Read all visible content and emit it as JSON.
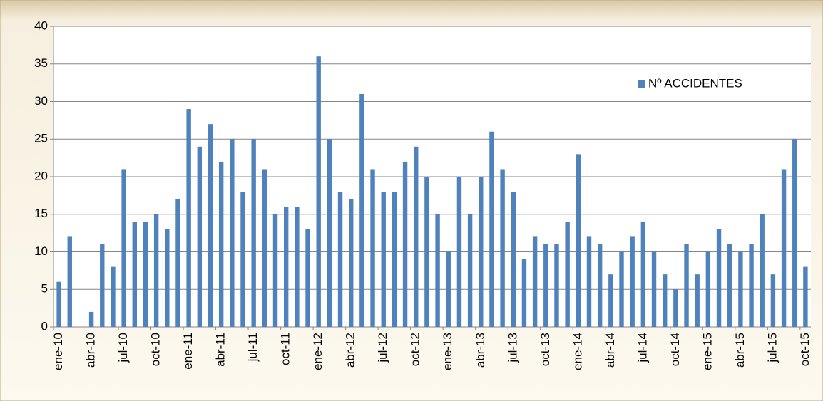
{
  "chart_data": {
    "type": "bar",
    "categories": [
      "ene-10",
      null,
      null,
      "abr-10",
      null,
      null,
      "jul-10",
      null,
      null,
      "oct-10",
      null,
      null,
      "ene-11",
      null,
      null,
      "abr-11",
      null,
      null,
      "jul-11",
      null,
      null,
      "oct-11",
      null,
      null,
      "ene-12",
      null,
      null,
      "abr-12",
      null,
      null,
      "jul-12",
      null,
      null,
      "oct-12",
      null,
      null,
      "ene-13",
      null,
      null,
      "abr-13",
      null,
      null,
      "jul-13",
      null,
      null,
      "oct-13",
      null,
      null,
      "ene-14",
      null,
      null,
      "abr-14",
      null,
      null,
      "jul-14",
      null,
      null,
      "oct-14",
      null,
      null,
      "ene-15",
      null,
      null,
      "abr-15",
      null,
      null,
      "jul-15",
      null,
      null,
      "oct-15"
    ],
    "series": [
      {
        "name": "Nº ACCIDENTES",
        "color": "#4f81bd",
        "values": [
          6,
          12,
          0,
          2,
          11,
          8,
          21,
          14,
          14,
          15,
          13,
          17,
          29,
          24,
          27,
          22,
          25,
          18,
          25,
          21,
          15,
          16,
          16,
          13,
          36,
          25,
          18,
          17,
          31,
          21,
          18,
          18,
          22,
          24,
          20,
          15,
          10,
          20,
          15,
          20,
          26,
          21,
          18,
          9,
          12,
          11,
          11,
          14,
          23,
          12,
          11,
          7,
          10,
          12,
          14,
          10,
          7,
          5,
          11,
          7,
          10,
          13,
          11,
          10,
          11,
          15,
          7,
          21,
          25,
          8
        ]
      }
    ],
    "ylim": [
      0,
      40
    ],
    "yticks": [
      0,
      5,
      10,
      15,
      20,
      25,
      30,
      35,
      40
    ],
    "grid": true,
    "legend": "upper-right"
  }
}
